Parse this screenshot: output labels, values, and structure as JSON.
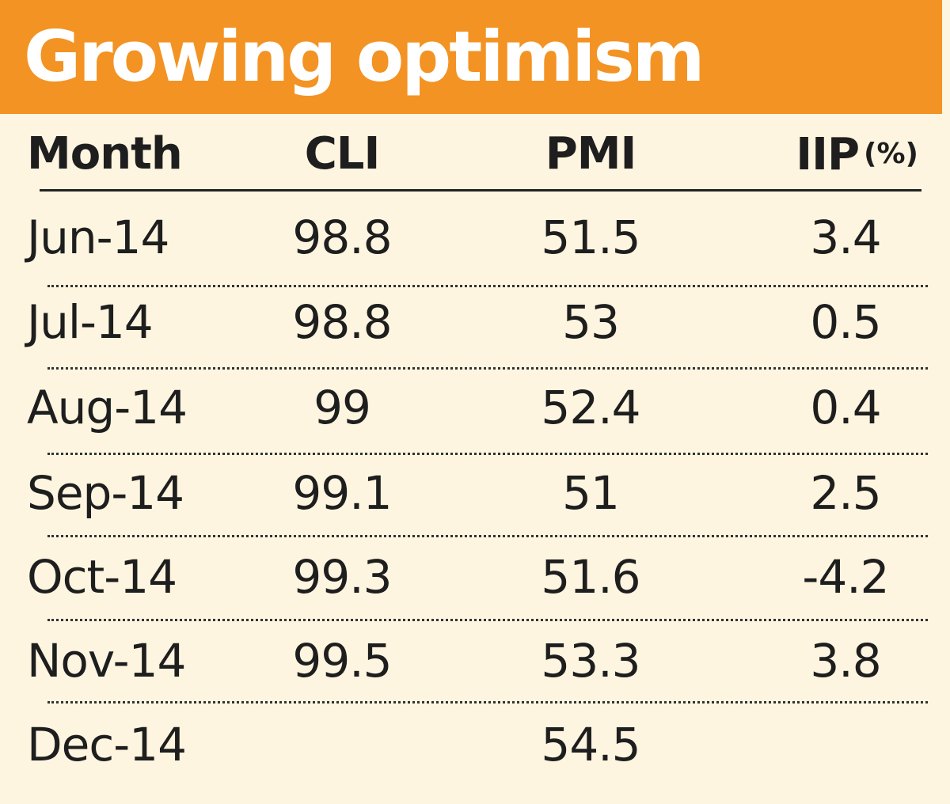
{
  "chart_data": {
    "type": "table",
    "title": "Growing optimism",
    "columns": [
      "Month",
      "CLI",
      "PMI",
      "IIP"
    ],
    "iip_unit": "(%)",
    "rows": [
      {
        "month": "Jun-14",
        "cli": "98.8",
        "pmi": "51.5",
        "iip": "3.4"
      },
      {
        "month": "Jul-14",
        "cli": "98.8",
        "pmi": "53",
        "iip": "0.5"
      },
      {
        "month": "Aug-14",
        "cli": "99",
        "pmi": "52.4",
        "iip": "0.4"
      },
      {
        "month": "Sep-14",
        "cli": "99.1",
        "pmi": "51",
        "iip": "2.5"
      },
      {
        "month": "Oct-14",
        "cli": "99.3",
        "pmi": "51.6",
        "iip": "-4.2"
      },
      {
        "month": "Nov-14",
        "cli": "99.5",
        "pmi": "53.3",
        "iip": "3.8"
      },
      {
        "month": "Dec-14",
        "cli": "",
        "pmi": "54.5",
        "iip": ""
      }
    ]
  },
  "colors": {
    "title_bar": "#f39323",
    "background": "#fdf5e0",
    "text": "#1e1e1e"
  }
}
